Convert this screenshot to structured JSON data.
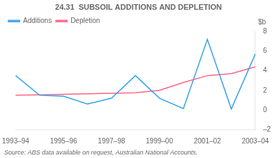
{
  "chart_data": {
    "type": "line",
    "title": "24.31  SUBSOIL ADDITIONS AND DEPLETION",
    "ylabel": "$b",
    "source": "Source: ABS data available on request, Australian National Accounts.",
    "categories": [
      "1993–94",
      null,
      "1995–96",
      null,
      "1997–98",
      null,
      "1999–00",
      null,
      "2001–02",
      null,
      "2003–04"
    ],
    "series": [
      {
        "name": "Additions",
        "values": [
          3.5,
          1.5,
          1.4,
          0.6,
          1.2,
          3.5,
          1.2,
          0.15,
          7.2,
          0.1,
          5.7
        ]
      },
      {
        "name": "Depletion",
        "values": [
          1.5,
          1.55,
          1.6,
          1.65,
          1.7,
          1.75,
          2.0,
          2.8,
          3.5,
          3.7,
          4.4
        ]
      }
    ],
    "ylim": [
      -2,
      8
    ],
    "yticks": [
      {
        "value": -2,
        "label": "–2"
      },
      0,
      2,
      4,
      6,
      8
    ],
    "grid": false,
    "legend": "upper left"
  }
}
